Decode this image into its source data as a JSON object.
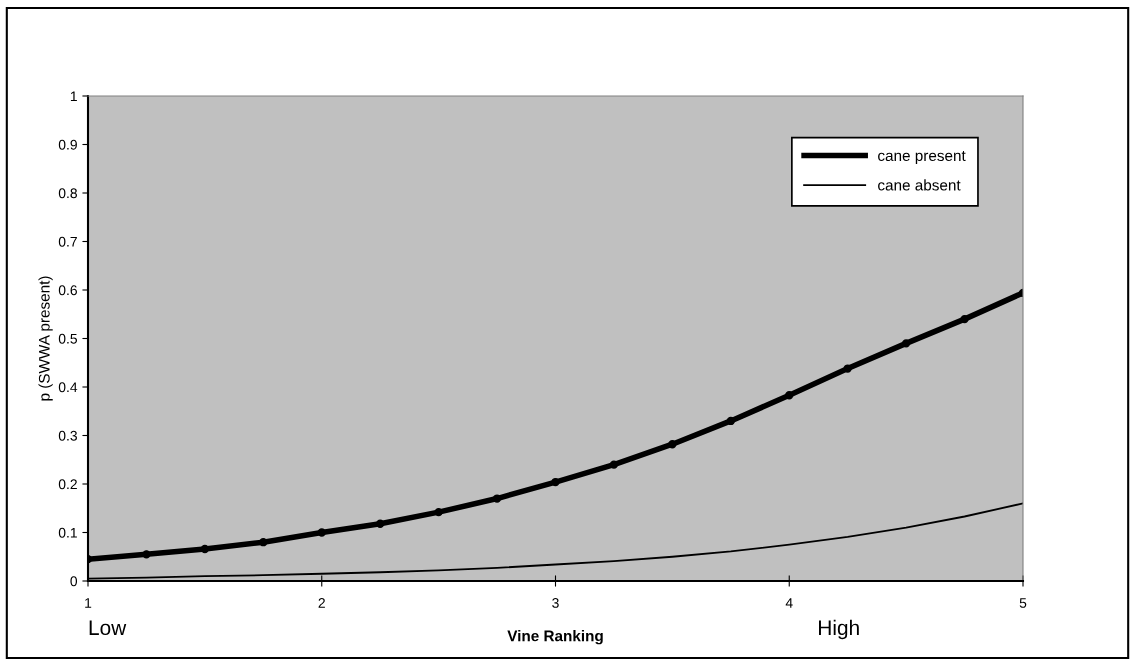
{
  "chart_data": {
    "type": "line",
    "xlabel": "Vine Ranking",
    "ylabel": "p (SWWA present)",
    "x": [
      1,
      1.25,
      1.5,
      1.75,
      2,
      2.25,
      2.5,
      2.75,
      3,
      3.25,
      3.5,
      3.75,
      4,
      4.25,
      4.5,
      4.75,
      5
    ],
    "series": [
      {
        "name": "cane present",
        "color": "#000000",
        "marker": "circle",
        "line_style": "solid",
        "values": [
          0.045,
          0.055,
          0.066,
          0.08,
          0.1,
          0.118,
          0.142,
          0.17,
          0.204,
          0.24,
          0.282,
          0.33,
          0.383,
          0.438,
          0.49,
          0.54,
          0.594
        ]
      },
      {
        "name": "cane absent",
        "color": "#000000",
        "marker": "none",
        "line_style": "solid",
        "values": [
          0.005,
          0.007,
          0.01,
          0.012,
          0.015,
          0.018,
          0.022,
          0.027,
          0.034,
          0.041,
          0.05,
          0.061,
          0.075,
          0.091,
          0.11,
          0.133,
          0.16
        ]
      }
    ],
    "xlim": [
      1,
      5
    ],
    "xticks": [
      1,
      2,
      3,
      4,
      5
    ],
    "ylim": [
      0,
      1
    ],
    "yticks": [
      0,
      0.1,
      0.2,
      0.3,
      0.4,
      0.5,
      0.6,
      0.7,
      0.8,
      0.9,
      1
    ],
    "grid": false,
    "legend": "top right",
    "annotations": [
      "Low",
      "High"
    ]
  }
}
